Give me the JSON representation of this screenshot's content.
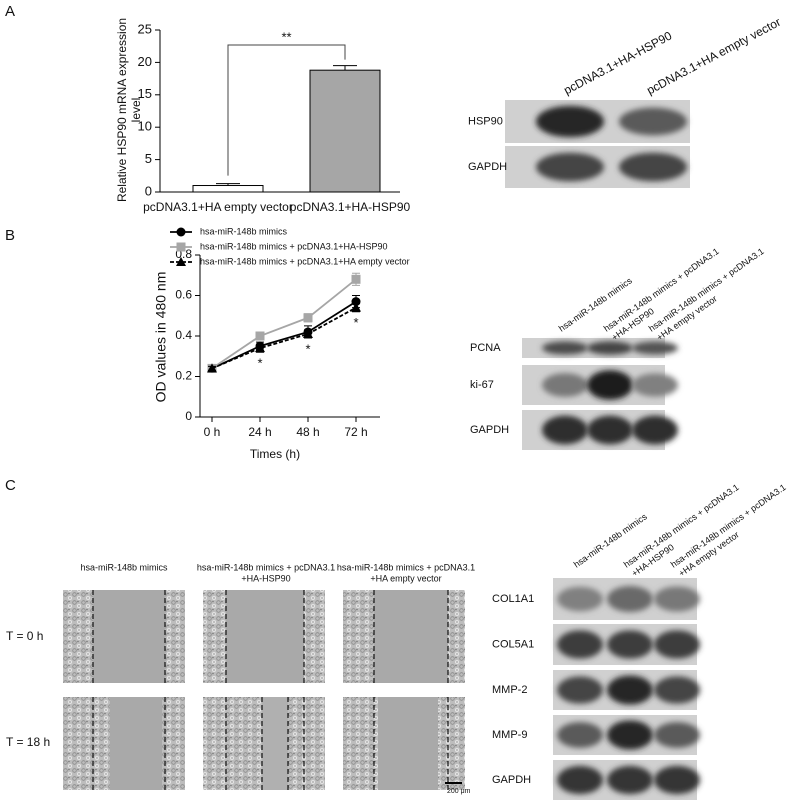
{
  "panels": [
    "A",
    "B",
    "C"
  ],
  "chart_data": [
    {
      "type": "bar",
      "ylabel": [
        "Relative HSP90 mRNA expression",
        "level"
      ],
      "categories": [
        "pcDNA3.1+HA empty vector",
        "pcDNA3.1+HA-HSP90"
      ],
      "values": [
        1.0,
        18.8
      ],
      "errors": [
        0.3,
        0.7
      ],
      "colors": [
        "#ffffff",
        "#a6a6a6"
      ],
      "ylim": [
        0,
        25
      ],
      "yticks": [
        0,
        5,
        10,
        15,
        20,
        25
      ],
      "annotation": "**"
    },
    {
      "type": "line",
      "xlabel": "Times (h)",
      "ylabel": "OD values in 480 nm",
      "categories": [
        "0 h",
        "24 h",
        "48 h",
        "72 h"
      ],
      "series": [
        {
          "name": "hsa-miR-148b mimics",
          "color": "#000000",
          "marker": "circle",
          "dashed": false,
          "values": [
            0.24,
            0.35,
            0.42,
            0.57
          ],
          "errors": [
            0.01,
            0.02,
            0.03,
            0.03
          ]
        },
        {
          "name": "hsa-miR-148b mimics + pcDNA3.1+HA-HSP90",
          "color": "#a6a6a6",
          "marker": "square",
          "dashed": false,
          "values": [
            0.24,
            0.4,
            0.49,
            0.68
          ],
          "errors": [
            0.01,
            0.02,
            0.02,
            0.03
          ]
        },
        {
          "name": "hsa-miR-148b mimics + pcDNA3.1+HA empty vector",
          "color": "#000000",
          "marker": "triangle",
          "dashed": true,
          "values": [
            0.24,
            0.34,
            0.41,
            0.54
          ],
          "errors": [
            0.01,
            0.02,
            0.02,
            0.02
          ]
        }
      ],
      "annotations": [
        null,
        "*",
        "*",
        "*"
      ],
      "ylim": [
        0,
        0.8
      ],
      "yticks": [
        0,
        0.2,
        0.4,
        0.6,
        0.8
      ]
    }
  ],
  "blots": [
    {
      "lanes": [
        [
          "pcDNA3.1+HA-HSP90"
        ],
        [
          "pcDNA3.1+HA empty vector"
        ]
      ],
      "rows": [
        "HSP90",
        "GAPDH"
      ]
    },
    {
      "lanes": [
        [
          "hsa-miR-148b mimics"
        ],
        [
          "hsa-miR-148b mimics + pcDNA3.1",
          "+HA-HSP90"
        ],
        [
          "hsa-miR-148b mimics + pcDNA3.1",
          "+HA empty vector"
        ]
      ],
      "rows": [
        "PCNA",
        "ki-67",
        "GAPDH"
      ]
    },
    {
      "lanes": [
        [
          "hsa-miR-148b mimics"
        ],
        [
          "hsa-miR-148b mimics + pcDNA3.1",
          "+HA-HSP90"
        ],
        [
          "hsa-miR-148b mimics + pcDNA3.1",
          "+HA empty vector"
        ]
      ],
      "rows": [
        "COL1A1",
        "COL5A1",
        "MMP-2",
        "MMP-9",
        "GAPDH"
      ]
    }
  ],
  "migration": {
    "columns": [
      [
        "hsa-miR-148b mimics"
      ],
      [
        "hsa-miR-148b mimics + pcDNA3.1",
        "+HA-HSP90"
      ],
      [
        "hsa-miR-148b mimics + pcDNA3.1",
        "+HA empty vector"
      ]
    ],
    "rows": [
      "T = 0 h",
      "T = 18 h"
    ],
    "scale_bar": "200 μm"
  }
}
